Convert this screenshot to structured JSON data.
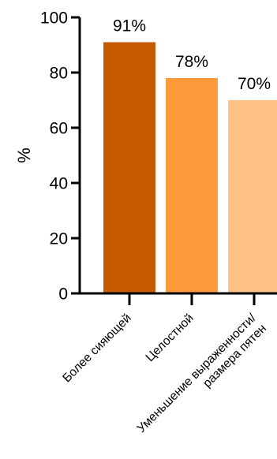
{
  "chart_data": {
    "type": "bar",
    "ylabel": "%",
    "ylim": [
      0,
      100
    ],
    "yticks": [
      0,
      20,
      40,
      60,
      80,
      100
    ],
    "categories": [
      [
        "Более сияющей"
      ],
      [
        "Целостной"
      ],
      [
        "Уменьшение выраженности/",
        "размера пятен"
      ]
    ],
    "values": [
      91,
      78,
      70
    ],
    "data_labels": [
      "91%",
      "78%",
      "70%"
    ],
    "colors": [
      "#C55A00",
      "#FF9A3C",
      "#FFC184"
    ]
  }
}
